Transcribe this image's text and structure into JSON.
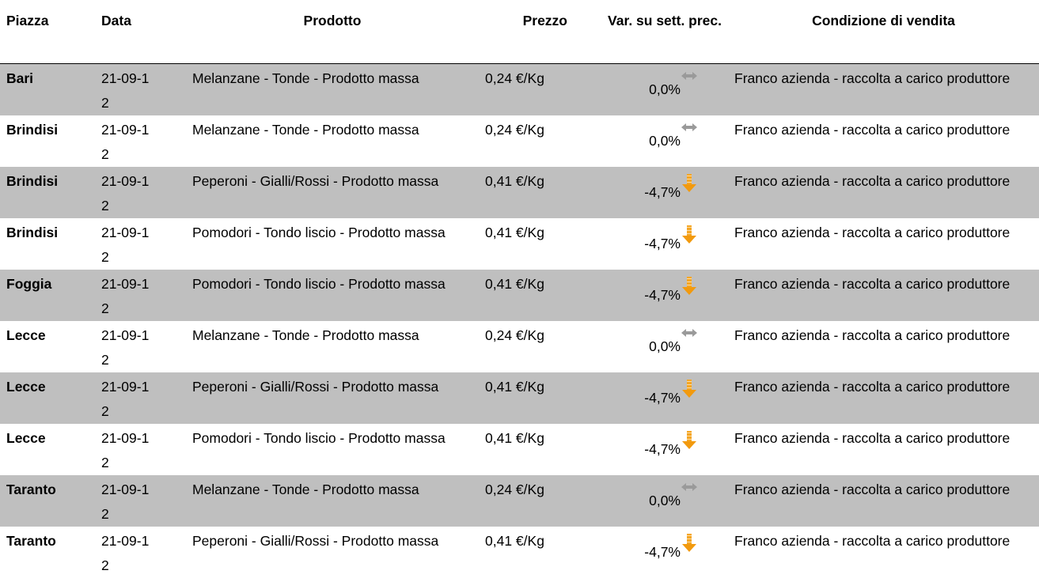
{
  "table": {
    "headers": [
      "Piazza",
      "Data",
      "Prodotto",
      "Prezzo",
      "Var. su sett. prec.",
      "Condizione di vendita"
    ],
    "rows": [
      [
        "Bari",
        "21-09-12",
        "Melanzane - Tonde - Prodotto massa",
        "0,24 €/Kg",
        "0,0%",
        "Franco azienda - raccolta a carico produttore"
      ],
      [
        "Brindisi",
        "21-09-12",
        "Melanzane - Tonde - Prodotto massa",
        "0,24 €/Kg",
        "0,0%",
        "Franco azienda - raccolta a carico produttore"
      ],
      [
        "Brindisi",
        "21-09-12",
        "Peperoni - Gialli/Rossi - Prodotto massa",
        "0,41 €/Kg",
        "-4,7%",
        "Franco azienda - raccolta a carico produttore"
      ],
      [
        "Brindisi",
        "21-09-12",
        "Pomodori - Tondo liscio - Prodotto massa",
        "0,41 €/Kg",
        "-4,7%",
        "Franco azienda - raccolta a carico produttore"
      ],
      [
        "Foggia",
        "21-09-12",
        "Pomodori - Tondo liscio - Prodotto massa",
        "0,41 €/Kg",
        "-4,7%",
        "Franco azienda - raccolta a carico produttore"
      ],
      [
        "Lecce",
        "21-09-12",
        "Melanzane - Tonde - Prodotto massa",
        "0,24 €/Kg",
        "0,0%",
        "Franco azienda - raccolta a carico produttore"
      ],
      [
        "Lecce",
        "21-09-12",
        "Peperoni - Gialli/Rossi - Prodotto massa",
        "0,41 €/Kg",
        "-4,7%",
        "Franco azienda - raccolta a carico produttore"
      ],
      [
        "Lecce",
        "21-09-12",
        "Pomodori - Tondo liscio - Prodotto massa",
        "0,41 €/Kg",
        "-4,7%",
        "Franco azienda - raccolta a carico produttore"
      ],
      [
        "Taranto",
        "21-09-12",
        "Melanzane - Tonde - Prodotto massa",
        "0,24 €/Kg",
        "0,0%",
        "Franco azienda - raccolta a carico produttore"
      ],
      [
        "Taranto",
        "21-09-12",
        "Peperoni - Gialli/Rossi - Prodotto massa",
        "0,41 €/Kg",
        "-4,7%",
        "Franco azienda - raccolta a carico produttore"
      ]
    ]
  }
}
